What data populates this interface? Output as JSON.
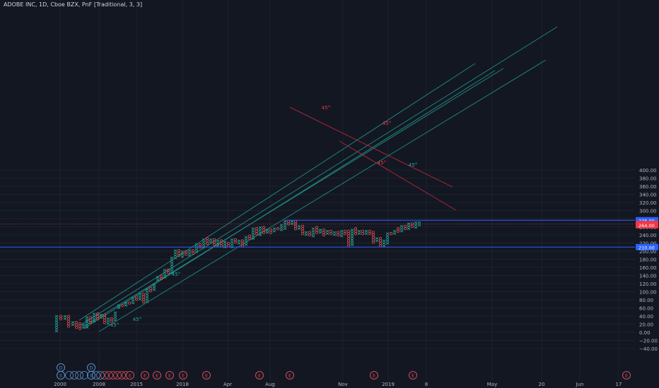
{
  "title": "ADOBE INC, 1D, Cboe BZX, PnF [Traditional, 3, 3]",
  "colors": {
    "background": "#131722",
    "grid": "#1e222d",
    "axis_text": "#b2b5be",
    "x_box": "#26a69a",
    "o_box": "#ef5350",
    "teal_line": "#1f8f86",
    "red_line": "#b2283a",
    "blue_line": "#2962ff",
    "label_blue": "#2962ff",
    "label_red": "#f23645",
    "badge_blue": "#5a8fc7",
    "badge_red": "#d24b57"
  },
  "price_axis": {
    "ticks": [
      "400.00",
      "380.00",
      "360.00",
      "340.00",
      "320.00",
      "300.00",
      "280.00",
      "260.00",
      "240.00",
      "220.00",
      "200.00",
      "180.00",
      "160.00",
      "140.00",
      "120.00",
      "100.00",
      "80.00",
      "60.00",
      "40.00",
      "20.00",
      "0.00",
      "−20.00",
      "−40.00"
    ],
    "labels": [
      {
        "text": "276.00",
        "value": 276,
        "color": "blue"
      },
      {
        "text": "266.66",
        "value": 266.66,
        "color": "red"
      },
      {
        "text": "264.00",
        "value": 264,
        "color": "red"
      },
      {
        "text": "210.00",
        "value": 210,
        "color": "blue"
      }
    ]
  },
  "time_axis": [
    "2000",
    "2008",
    "2015",
    "2018",
    "Apr",
    "Aug",
    "Nov",
    "2019",
    "8",
    "May",
    "20",
    "Jun",
    "17"
  ],
  "angle_labels": [
    {
      "text": "45°",
      "color": "teal"
    },
    {
      "text": "45°",
      "color": "teal"
    },
    {
      "text": "45°",
      "color": "teal"
    },
    {
      "text": "45°",
      "color": "teal"
    },
    {
      "text": "45°",
      "color": "red"
    },
    {
      "text": "45°",
      "color": "red"
    },
    {
      "text": "45°",
      "color": "red"
    }
  ],
  "events": {
    "dividends": [
      "D",
      "D"
    ],
    "splits": [
      "S",
      "S"
    ],
    "earnings": [
      "E",
      "E",
      "E",
      "E",
      "E",
      "E",
      "E",
      "E",
      "E",
      "E",
      "E",
      "E",
      "E",
      "E",
      "E",
      "E",
      "E"
    ]
  }
}
